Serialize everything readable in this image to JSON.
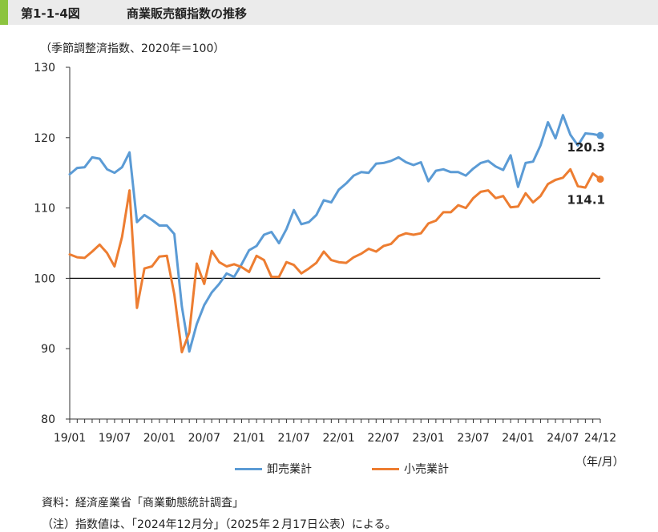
{
  "header": {
    "figure_number": "第1-1-4図",
    "title": "商業販売額指数の推移"
  },
  "chart_data": {
    "type": "line",
    "ylabel": "（季節調整済指数、2020年＝100）",
    "xunit": "（年/月）",
    "ylim": [
      80,
      130
    ],
    "yticks": [
      80,
      90,
      100,
      110,
      120,
      130
    ],
    "reference_line": 100,
    "xtick_labels": [
      "19/01",
      "19/07",
      "20/01",
      "20/07",
      "21/01",
      "21/07",
      "22/01",
      "22/07",
      "23/01",
      "23/07",
      "24/01",
      "24/07",
      "24/12"
    ],
    "xtick_index": [
      0,
      6,
      12,
      18,
      24,
      30,
      36,
      42,
      48,
      54,
      60,
      66,
      71
    ],
    "legend_position": "bottom",
    "series": [
      {
        "name": "卸売業計",
        "color": "#5b9bd5",
        "end_label": "120.3",
        "values": [
          114.8,
          115.7,
          115.8,
          117.2,
          117.0,
          115.5,
          115.0,
          115.8,
          117.9,
          108.0,
          109.0,
          108.3,
          107.5,
          107.5,
          106.3,
          96.0,
          89.6,
          93.5,
          96.2,
          98.0,
          99.2,
          100.7,
          100.2,
          102.0,
          104.0,
          104.6,
          106.2,
          106.6,
          105.0,
          107.0,
          109.7,
          107.7,
          108.0,
          109.0,
          111.1,
          110.8,
          112.6,
          113.5,
          114.6,
          115.1,
          115.0,
          116.3,
          116.4,
          116.7,
          117.2,
          116.5,
          116.1,
          116.5,
          113.8,
          115.3,
          115.5,
          115.1,
          115.1,
          114.6,
          115.6,
          116.4,
          116.7,
          115.9,
          115.4,
          117.5,
          113.0,
          116.4,
          116.6,
          118.9,
          122.2,
          119.9,
          123.2,
          120.4,
          118.9,
          120.6,
          120.5,
          120.3
        ]
      },
      {
        "name": "小売業計",
        "color": "#ed7d31",
        "end_label": "114.1",
        "values": [
          103.4,
          103.0,
          102.9,
          103.8,
          104.8,
          103.6,
          101.7,
          105.9,
          112.5,
          95.8,
          101.4,
          101.7,
          103.1,
          103.2,
          97.7,
          89.5,
          92.3,
          102.1,
          99.2,
          103.9,
          102.3,
          101.7,
          102.0,
          101.6,
          100.9,
          103.2,
          102.6,
          100.2,
          100.2,
          102.3,
          101.9,
          100.7,
          101.4,
          102.2,
          103.8,
          102.6,
          102.3,
          102.2,
          103.0,
          103.5,
          104.2,
          103.8,
          104.6,
          104.9,
          106.0,
          106.4,
          106.2,
          106.4,
          107.8,
          108.2,
          109.4,
          109.4,
          110.4,
          110.0,
          111.4,
          112.3,
          112.5,
          111.4,
          111.7,
          110.1,
          110.2,
          112.1,
          110.8,
          111.7,
          113.4,
          114.0,
          114.3,
          115.5,
          113.1,
          112.9,
          114.9,
          114.1
        ]
      }
    ]
  },
  "footer": {
    "source": "資料：経済産業省「商業動態統計調査」",
    "note": "（注）指数値は、「2024年12月分」（2025年２月17日公表）による。"
  }
}
